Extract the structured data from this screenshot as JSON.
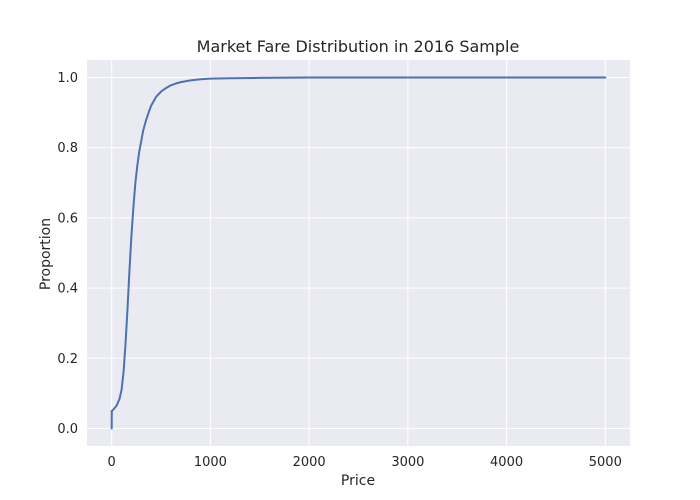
{
  "chart_data": {
    "type": "line",
    "title": "Market Fare Distribution in 2016 Sample",
    "xlabel": "Price",
    "ylabel": "Proportion",
    "xlim": [
      -250,
      5250
    ],
    "ylim": [
      -0.05,
      1.05
    ],
    "xticks": [
      0,
      1000,
      2000,
      3000,
      4000,
      5000
    ],
    "xtick_labels": [
      "0",
      "1000",
      "2000",
      "3000",
      "4000",
      "5000"
    ],
    "yticks": [
      0.0,
      0.2,
      0.4,
      0.6,
      0.8,
      1.0
    ],
    "ytick_labels": [
      "0.0",
      "0.2",
      "0.4",
      "0.6",
      "0.8",
      "1.0"
    ],
    "grid": true,
    "background_color": "#EAEAF2",
    "grid_color": "#FFFFFF",
    "series": [
      {
        "color": "#4C72B0",
        "x": [
          0,
          1,
          5,
          20,
          50,
          80,
          100,
          120,
          140,
          160,
          180,
          200,
          220,
          240,
          260,
          280,
          300,
          320,
          350,
          380,
          400,
          450,
          500,
          550,
          600,
          650,
          700,
          800,
          900,
          1000,
          1200,
          1500,
          2000,
          3000,
          4000,
          5000
        ],
        "y": [
          0.0,
          0.05,
          0.05,
          0.055,
          0.065,
          0.085,
          0.11,
          0.16,
          0.24,
          0.34,
          0.45,
          0.55,
          0.63,
          0.7,
          0.75,
          0.79,
          0.82,
          0.85,
          0.88,
          0.905,
          0.92,
          0.945,
          0.96,
          0.97,
          0.978,
          0.983,
          0.987,
          0.992,
          0.995,
          0.997,
          0.998,
          0.999,
          1.0,
          1.0,
          1.0,
          1.0
        ]
      }
    ]
  }
}
